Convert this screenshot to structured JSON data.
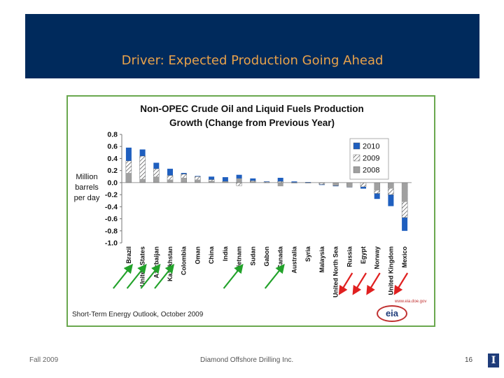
{
  "slide": {
    "title": "Driver: Expected Production Going Ahead",
    "footer_left": "Fall 2009",
    "footer_center": "Diamond Offshore Drilling Inc.",
    "page_number": "16",
    "university_logo": "I"
  },
  "chart_data": {
    "type": "bar",
    "title": "Non-OPEC Crude Oil and Liquid Fuels Production Growth (Change from Previous Year)",
    "title_lines": [
      "Non-OPEC Crude Oil and Liquid Fuels Production",
      "Growth (Change from Previous Year)"
    ],
    "ylabel": "Million barrels per day",
    "ylabel_lines": [
      "Million",
      "barrels",
      "per day"
    ],
    "ylim": [
      -1.0,
      0.8
    ],
    "yticks": [
      "0.8",
      "0.6",
      "0.4",
      "0.2",
      "0.0",
      "-0.2",
      "-0.4",
      "-0.6",
      "-0.8",
      "-1.0"
    ],
    "legend_position": "top-right",
    "grid": false,
    "categories": [
      "Brazil",
      "United States",
      "Azerbaijan",
      "Kazakhstan",
      "Colombia",
      "Oman",
      "China",
      "India",
      "Vietnam",
      "Sudan",
      "Gabon",
      "Canada",
      "Australia",
      "Syria",
      "Malaysia",
      "United North Sea",
      "Russia",
      "Egypt",
      "Norway",
      "United Kingdom",
      "Mexico"
    ],
    "series": [
      {
        "name": "2010",
        "color": "#1f5fbf",
        "values": [
          0.58,
          0.55,
          0.33,
          0.23,
          0.16,
          0.11,
          0.1,
          0.09,
          0.13,
          0.07,
          0.02,
          0.08,
          0.02,
          0.01,
          -0.04,
          -0.06,
          -0.08,
          -0.1,
          -0.27,
          -0.39,
          -0.8
        ]
      },
      {
        "name": "2009",
        "color": "#e0e0e0",
        "values": [
          0.36,
          0.44,
          0.23,
          0.12,
          0.14,
          0.1,
          0.05,
          0.02,
          -0.05,
          0.03,
          0.01,
          0.02,
          0.0,
          0.0,
          -0.03,
          -0.05,
          -0.06,
          -0.07,
          -0.18,
          -0.2,
          -0.58
        ]
      },
      {
        "name": "2008",
        "color": "#a0a0a0",
        "values": [
          0.16,
          0.06,
          0.1,
          0.05,
          0.08,
          0.05,
          0.03,
          0.02,
          0.07,
          0.02,
          0.0,
          -0.06,
          0.0,
          0.0,
          -0.01,
          -0.05,
          -0.08,
          0.0,
          -0.13,
          -0.1,
          -0.32
        ]
      }
    ],
    "source": "Short-Term Energy Outlook, October 2009",
    "logo_text": "eia",
    "logo_url": "www.eia.doe.gov",
    "annotation_arrows": [
      {
        "color": "green",
        "direction": "up",
        "category": "Brazil"
      },
      {
        "color": "green",
        "direction": "up",
        "category": "United States"
      },
      {
        "color": "green",
        "direction": "up",
        "category": "Azerbaijan"
      },
      {
        "color": "green",
        "direction": "up",
        "category": "Kazakhstan"
      },
      {
        "color": "green",
        "direction": "up",
        "category": "Vietnam"
      },
      {
        "color": "green",
        "direction": "up",
        "category": "Canada"
      },
      {
        "color": "red",
        "direction": "down",
        "category": "Russia"
      },
      {
        "color": "red",
        "direction": "down",
        "category": "Egypt"
      },
      {
        "color": "red",
        "direction": "down",
        "category": "Norway"
      },
      {
        "color": "red",
        "direction": "down",
        "category": "Mexico"
      }
    ]
  }
}
